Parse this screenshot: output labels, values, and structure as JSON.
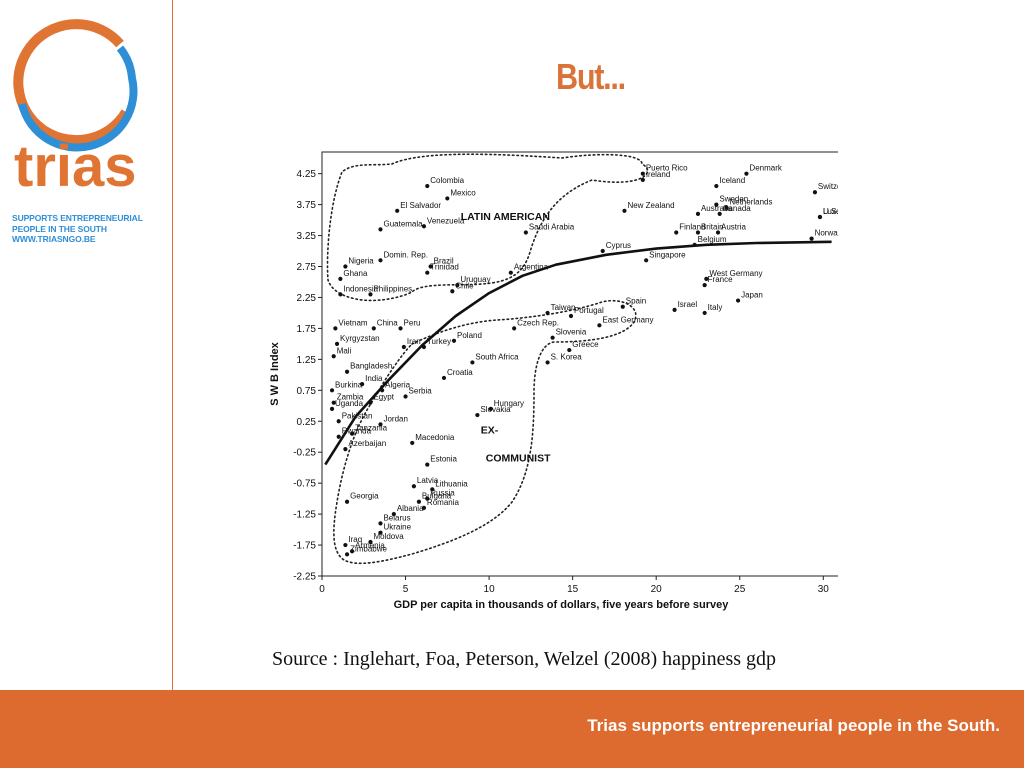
{
  "sidebar": {
    "logo_text": "trias",
    "tagline": [
      "SUPPORTS ENTREPRENEURIAL",
      "PEOPLE IN THE SOUTH",
      "WWW.TRIASNGO.BE"
    ]
  },
  "slide": {
    "title": "But...",
    "source": "Source : Inglehart, Foa, Peterson, Welzel (2008) happiness gdp"
  },
  "footer": {
    "text": "Trias supports entrepreneurial people in the South."
  },
  "colors": {
    "brand_orange": "#dd6a2e",
    "brand_blue": "#2e8fd6"
  },
  "chart_data": {
    "type": "scatter",
    "xlabel": "GDP per capita in thousands of dollars, five years before survey",
    "ylabel": "S W B Index",
    "xlim": [
      0,
      31
    ],
    "ylim": [
      -2.25,
      4.6
    ],
    "xticks": [
      0,
      5,
      10,
      15,
      20,
      25,
      30
    ],
    "yticks": [
      4.25,
      3.75,
      3.25,
      2.75,
      2.25,
      1.75,
      1.25,
      0.75,
      0.25,
      -0.25,
      -0.75,
      -1.25,
      -1.75,
      -2.25
    ],
    "group_labels": [
      {
        "text": "LATIN AMERICAN",
        "x": 8.3,
        "y": 3.5
      },
      {
        "text": "EX-",
        "x": 9.5,
        "y": 0.05
      },
      {
        "text": "COMMUNIST",
        "x": 9.8,
        "y": -0.4
      }
    ],
    "fit_curve": {
      "x": [
        0.2,
        2,
        4,
        6,
        8,
        10,
        12,
        14,
        17,
        20,
        23,
        26,
        30.5
      ],
      "y": [
        -0.45,
        0.32,
        0.92,
        1.48,
        1.95,
        2.32,
        2.6,
        2.78,
        2.94,
        3.04,
        3.1,
        3.13,
        3.15
      ]
    },
    "points": [
      {
        "name": "Puerto Rico",
        "x": 19.2,
        "y": 4.25
      },
      {
        "name": "Ireland",
        "x": 19.2,
        "y": 4.15
      },
      {
        "name": "Iceland",
        "x": 23.6,
        "y": 4.05
      },
      {
        "name": "Denmark",
        "x": 25.4,
        "y": 4.25
      },
      {
        "name": "Switzerland",
        "x": 29.5,
        "y": 3.95
      },
      {
        "name": "Sweden",
        "x": 23.6,
        "y": 3.75
      },
      {
        "name": "Netherlands",
        "x": 24.2,
        "y": 3.7
      },
      {
        "name": "U.S.A.",
        "x": 29.8,
        "y": 3.55
      },
      {
        "name": "Luxembourg",
        "x": 29.8,
        "y": 3.55
      },
      {
        "name": "Australia",
        "x": 22.5,
        "y": 3.6
      },
      {
        "name": "Canada",
        "x": 23.8,
        "y": 3.6
      },
      {
        "name": "New Zealand",
        "x": 18.1,
        "y": 3.65
      },
      {
        "name": "Finland",
        "x": 21.2,
        "y": 3.3
      },
      {
        "name": "Britain",
        "x": 22.5,
        "y": 3.3
      },
      {
        "name": "Austria",
        "x": 23.7,
        "y": 3.3
      },
      {
        "name": "Norway",
        "x": 29.3,
        "y": 3.2
      },
      {
        "name": "Belgium",
        "x": 22.3,
        "y": 3.1
      },
      {
        "name": "Cyprus",
        "x": 16.8,
        "y": 3.0
      },
      {
        "name": "Singapore",
        "x": 19.4,
        "y": 2.85
      },
      {
        "name": "West Germany",
        "x": 23.0,
        "y": 2.55
      },
      {
        "name": "France",
        "x": 22.9,
        "y": 2.45
      },
      {
        "name": "Japan",
        "x": 24.9,
        "y": 2.2
      },
      {
        "name": "Israel",
        "x": 21.1,
        "y": 2.05
      },
      {
        "name": "Italy",
        "x": 22.9,
        "y": 2.0
      },
      {
        "name": "Spain",
        "x": 18.0,
        "y": 2.1
      },
      {
        "name": "Portugal",
        "x": 14.9,
        "y": 1.95
      },
      {
        "name": "Taiwan",
        "x": 13.5,
        "y": 2.0
      },
      {
        "name": "Saudi Arabia",
        "x": 12.2,
        "y": 3.3
      },
      {
        "name": "Argentina",
        "x": 11.3,
        "y": 2.65
      },
      {
        "name": "Uruguay",
        "x": 8.1,
        "y": 2.45
      },
      {
        "name": "Colombia",
        "x": 6.3,
        "y": 4.05
      },
      {
        "name": "Mexico",
        "x": 7.5,
        "y": 3.85
      },
      {
        "name": "El Salvador",
        "x": 4.5,
        "y": 3.65
      },
      {
        "name": "Venezuela",
        "x": 6.1,
        "y": 3.4
      },
      {
        "name": "Guatemala",
        "x": 3.5,
        "y": 3.35
      },
      {
        "name": "Brazil",
        "x": 6.5,
        "y": 2.75
      },
      {
        "name": "Trinidad",
        "x": 6.3,
        "y": 2.65
      },
      {
        "name": "Chile",
        "x": 7.8,
        "y": 2.35
      },
      {
        "name": "Domin. Rep.",
        "x": 3.5,
        "y": 2.85
      },
      {
        "name": "Nigeria",
        "x": 1.4,
        "y": 2.75
      },
      {
        "name": "Ghana",
        "x": 1.1,
        "y": 2.55
      },
      {
        "name": "Indonesia",
        "x": 1.1,
        "y": 2.3
      },
      {
        "name": "Philippines",
        "x": 2.9,
        "y": 2.3
      },
      {
        "name": "Vietnam",
        "x": 0.8,
        "y": 1.75
      },
      {
        "name": "Kyrgyzstan",
        "x": 0.9,
        "y": 1.5
      },
      {
        "name": "China",
        "x": 3.1,
        "y": 1.75
      },
      {
        "name": "Peru",
        "x": 4.7,
        "y": 1.75
      },
      {
        "name": "Iran",
        "x": 4.9,
        "y": 1.45
      },
      {
        "name": "Turkey",
        "x": 6.1,
        "y": 1.45
      },
      {
        "name": "Poland",
        "x": 7.9,
        "y": 1.55
      },
      {
        "name": "South Africa",
        "x": 9.0,
        "y": 1.2
      },
      {
        "name": "Croatia",
        "x": 7.3,
        "y": 0.95
      },
      {
        "name": "Czech Rep.",
        "x": 11.5,
        "y": 1.75
      },
      {
        "name": "Slovenia",
        "x": 13.8,
        "y": 1.6
      },
      {
        "name": "East Germany",
        "x": 16.6,
        "y": 1.8
      },
      {
        "name": "Greece",
        "x": 14.8,
        "y": 1.4
      },
      {
        "name": "S. Korea",
        "x": 13.5,
        "y": 1.2
      },
      {
        "name": "Mali",
        "x": 0.7,
        "y": 1.3
      },
      {
        "name": "Bangladesh",
        "x": 1.5,
        "y": 1.05
      },
      {
        "name": "Burkina",
        "x": 0.6,
        "y": 0.75
      },
      {
        "name": "India",
        "x": 2.4,
        "y": 0.85
      },
      {
        "name": "Algeria",
        "x": 3.6,
        "y": 0.75
      },
      {
        "name": "Zambia",
        "x": 0.7,
        "y": 0.55
      },
      {
        "name": "Uganda",
        "x": 0.6,
        "y": 0.45
      },
      {
        "name": "Egypt",
        "x": 2.9,
        "y": 0.55
      },
      {
        "name": "Serbia",
        "x": 5.0,
        "y": 0.65
      },
      {
        "name": "Hungary",
        "x": 10.1,
        "y": 0.45
      },
      {
        "name": "Slovakia",
        "x": 9.3,
        "y": 0.35
      },
      {
        "name": "Pakistan",
        "x": 1.0,
        "y": 0.25
      },
      {
        "name": "Jordan",
        "x": 3.5,
        "y": 0.2
      },
      {
        "name": "Rwanda",
        "x": 1.0,
        "y": 0.0
      },
      {
        "name": "Tanzania",
        "x": 1.8,
        "y": 0.05
      },
      {
        "name": "Macedonia",
        "x": 5.4,
        "y": -0.1
      },
      {
        "name": "Azerbaijan",
        "x": 1.4,
        "y": -0.2
      },
      {
        "name": "Estonia",
        "x": 6.3,
        "y": -0.45
      },
      {
        "name": "Latvia",
        "x": 5.5,
        "y": -0.8
      },
      {
        "name": "Lithuania",
        "x": 6.6,
        "y": -0.85
      },
      {
        "name": "Russia",
        "x": 6.3,
        "y": -1.0
      },
      {
        "name": "Romania",
        "x": 6.1,
        "y": -1.15
      },
      {
        "name": "Bulgaria",
        "x": 5.8,
        "y": -1.05
      },
      {
        "name": "Georgia",
        "x": 1.5,
        "y": -1.05
      },
      {
        "name": "Albania",
        "x": 4.3,
        "y": -1.25
      },
      {
        "name": "Belarus",
        "x": 3.5,
        "y": -1.4
      },
      {
        "name": "Ukraine",
        "x": 3.5,
        "y": -1.55
      },
      {
        "name": "Moldova",
        "x": 2.9,
        "y": -1.7
      },
      {
        "name": "Iraq",
        "x": 1.4,
        "y": -1.75
      },
      {
        "name": "Armenia",
        "x": 1.8,
        "y": -1.85
      },
      {
        "name": "Zimbabwe",
        "x": 1.5,
        "y": -1.9
      }
    ]
  }
}
